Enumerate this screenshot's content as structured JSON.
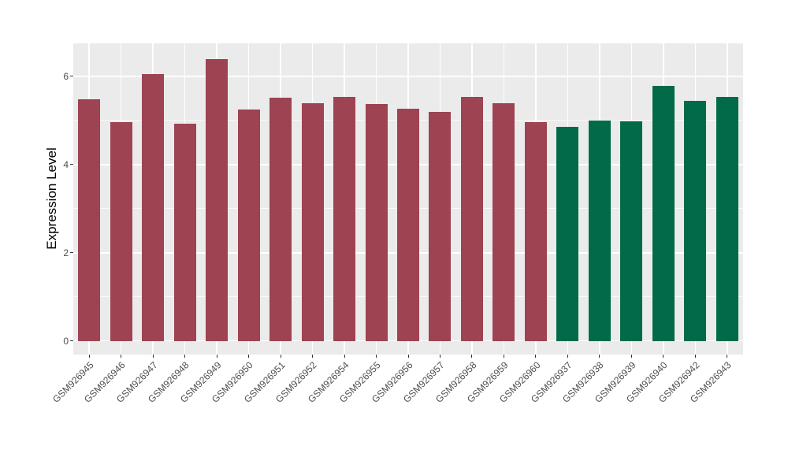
{
  "figure": {
    "background": "#FFFFFF",
    "panel_background": "#EBEBEB",
    "gridline_color": "#FFFFFF",
    "tick_color": "#333333",
    "axis_text_color": "#4D4D4D",
    "axis_title_color": "#000000"
  },
  "chart_data": {
    "type": "bar",
    "title": "",
    "xlabel": "",
    "ylabel": "Expression Level",
    "legend": "none",
    "grid": true,
    "categories": [
      "GSM926945",
      "GSM926946",
      "GSM926947",
      "GSM926948",
      "GSM926949",
      "GSM926950",
      "GSM926951",
      "GSM926952",
      "GSM926954",
      "GSM926955",
      "GSM926956",
      "GSM926957",
      "GSM926958",
      "GSM926959",
      "GSM926960",
      "GSM926937",
      "GSM926938",
      "GSM926939",
      "GSM926940",
      "GSM926942",
      "GSM926943"
    ],
    "values": [
      5.48,
      4.96,
      6.05,
      4.93,
      6.4,
      5.25,
      5.52,
      5.39,
      5.54,
      5.38,
      5.27,
      5.2,
      5.53,
      5.39,
      4.96,
      4.86,
      5.0,
      4.98,
      5.79,
      5.45,
      5.54
    ],
    "bar_colors": [
      "#9D4352",
      "#9D4352",
      "#9D4352",
      "#9D4352",
      "#9D4352",
      "#9D4352",
      "#9D4352",
      "#9D4352",
      "#9D4352",
      "#9D4352",
      "#9D4352",
      "#9D4352",
      "#9D4352",
      "#9D4352",
      "#9D4352",
      "#006A49",
      "#006A49",
      "#006A49",
      "#006A49",
      "#006A49",
      "#006A49"
    ],
    "group_colors": {
      "left_group": "#9D4352",
      "right_group": "#006A49"
    },
    "yticks": [
      0,
      2,
      4,
      6
    ],
    "ytick_labels": [
      "0",
      "2",
      "4",
      "6"
    ],
    "minor_gridlines": [
      1,
      3,
      5
    ],
    "ylim": [
      -0.31,
      6.75
    ],
    "bar_width_fraction": 0.7
  }
}
